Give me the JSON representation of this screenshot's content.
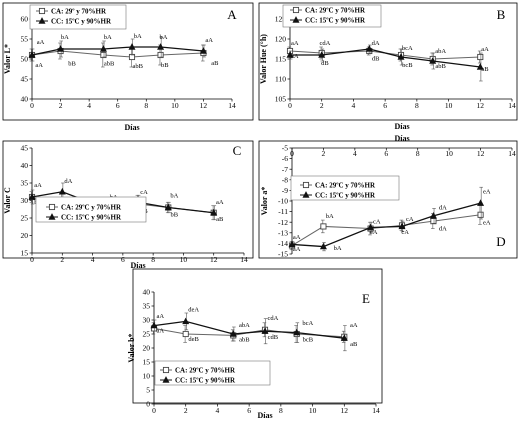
{
  "chart_data": [
    {
      "panel": "A",
      "type": "line",
      "xlabel": "Días",
      "ylabel": "Valor L*",
      "xlim": [
        0,
        14
      ],
      "xticks": [
        0,
        2,
        4,
        6,
        8,
        10,
        12,
        14
      ],
      "ylim": [
        40,
        60
      ],
      "yticks": [
        40,
        45,
        50,
        55,
        60
      ],
      "legend": [
        "CA: 29º y 70%HR",
        "CC: 15ºC y 90%HR"
      ],
      "series": [
        {
          "name": "CA: 29º y 70%HR",
          "marker": "square",
          "x": [
            0,
            2,
            5,
            7,
            9,
            12
          ],
          "y": [
            51,
            52,
            51,
            50.5,
            51,
            51.5
          ],
          "err": [
            1.5,
            2,
            3,
            2.5,
            2.5,
            2
          ]
        },
        {
          "name": "CC: 15ºC y 90%HR",
          "marker": "triangle",
          "x": [
            0,
            2,
            5,
            7,
            9,
            12
          ],
          "y": [
            51,
            52.5,
            52.5,
            53,
            53,
            52
          ],
          "err": [
            1.5,
            2,
            2,
            2,
            2.5,
            1.5
          ]
        }
      ],
      "labels": [
        {
          "x": 0.6,
          "y": 53.8,
          "t": "aA"
        },
        {
          "x": 0.5,
          "y": 48,
          "t": "aA"
        },
        {
          "x": 2.3,
          "y": 55,
          "t": "bA"
        },
        {
          "x": 2.8,
          "y": 48.4,
          "t": "bB"
        },
        {
          "x": 5.3,
          "y": 55,
          "t": "bA"
        },
        {
          "x": 5.4,
          "y": 48.4,
          "t": "abB"
        },
        {
          "x": 7.4,
          "y": 55.3,
          "t": "bA"
        },
        {
          "x": 7.4,
          "y": 47.8,
          "t": "abB"
        },
        {
          "x": 9.2,
          "y": 55,
          "t": "bA"
        },
        {
          "x": 9.3,
          "y": 48,
          "t": "bB"
        },
        {
          "x": 12.4,
          "y": 54.3,
          "t": "aA"
        },
        {
          "x": 12.8,
          "y": 48.5,
          "t": "aB"
        }
      ]
    },
    {
      "panel": "B",
      "type": "line",
      "xlabel": "Días",
      "ylabel": "Valor Hue (°h)",
      "xlim": [
        0,
        14
      ],
      "xticks": [
        0,
        2,
        4,
        6,
        8,
        10,
        12,
        14
      ],
      "ylim": [
        105,
        125
      ],
      "yticks": [
        105,
        110,
        115,
        120,
        125
      ],
      "legend": [
        "CA: 29ºC y 70%HR",
        "CC: 15ºC y 90%HR"
      ],
      "series": [
        {
          "name": "CA: 29ºC y 70%HR",
          "marker": "square",
          "x": [
            0,
            2,
            5,
            7,
            9,
            12
          ],
          "y": [
            117,
            116.5,
            117,
            116,
            115,
            115.5
          ],
          "err": [
            1,
            1.5,
            1,
            1.5,
            1.5,
            1.5
          ]
        },
        {
          "name": "CC: 15ºC y 90%HR",
          "marker": "triangle",
          "x": [
            0,
            2,
            5,
            7,
            9,
            12
          ],
          "y": [
            116,
            116,
            117.5,
            115.5,
            114.5,
            113
          ],
          "err": [
            1,
            1.5,
            1,
            2,
            2,
            3.5
          ]
        }
      ],
      "labels": [
        {
          "x": 0.3,
          "y": 118.5,
          "t": "aA"
        },
        {
          "x": 0.3,
          "y": 115.2,
          "t": "aA"
        },
        {
          "x": 2.2,
          "y": 118.5,
          "t": "cdA"
        },
        {
          "x": 2.2,
          "y": 113.5,
          "t": "dB"
        },
        {
          "x": 5.4,
          "y": 118.5,
          "t": "dA"
        },
        {
          "x": 5.4,
          "y": 114.6,
          "t": "dB"
        },
        {
          "x": 7.4,
          "y": 117.2,
          "t": "bcA"
        },
        {
          "x": 7.4,
          "y": 113,
          "t": "bcB"
        },
        {
          "x": 9.5,
          "y": 116.5,
          "t": "abA"
        },
        {
          "x": 9.5,
          "y": 112.7,
          "t": "abB"
        },
        {
          "x": 12.3,
          "y": 117,
          "t": "aA"
        },
        {
          "x": 12.3,
          "y": 112,
          "t": "aB"
        }
      ]
    },
    {
      "panel": "C",
      "type": "line",
      "xlabel": "Días",
      "ylabel": "Valor C",
      "xlim": [
        0,
        14
      ],
      "xticks": [
        0,
        2,
        4,
        6,
        8,
        10,
        12,
        14
      ],
      "ylim": [
        15,
        45
      ],
      "yticks": [
        15,
        20,
        25,
        30,
        35,
        40,
        45
      ],
      "legend": [
        "CA: 29ºC y 70%HR",
        "CC: 15ºC y 90%HR"
      ],
      "series": [
        {
          "name": "CA: 29ºC y 70%HR",
          "marker": "square",
          "x": [
            0,
            2,
            5,
            7,
            9,
            12
          ],
          "y": [
            31,
            28,
            27.5,
            29,
            28,
            26.5
          ],
          "err": [
            1.5,
            4,
            1.5,
            2.5,
            1.5,
            2
          ]
        },
        {
          "name": "CC: 15ºC y 90%HR",
          "marker": "triangle",
          "x": [
            0,
            2,
            5,
            7,
            9,
            12
          ],
          "y": [
            31,
            32.5,
            27.5,
            29.5,
            28,
            26.5
          ],
          "err": [
            2,
            2.5,
            2,
            2,
            1.5,
            2
          ]
        }
      ],
      "labels": [
        {
          "x": 0.4,
          "y": 33.8,
          "t": "aA"
        },
        {
          "x": 0.4,
          "y": 29,
          "t": "bB"
        },
        {
          "x": 2.4,
          "y": 35,
          "t": "dA"
        },
        {
          "x": 2.4,
          "y": 24.5,
          "t": "dB"
        },
        {
          "x": 5.4,
          "y": 30.5,
          "t": "bA"
        },
        {
          "x": 5.4,
          "y": 25,
          "t": "bB"
        },
        {
          "x": 7.4,
          "y": 31.8,
          "t": "cA"
        },
        {
          "x": 7.4,
          "y": 26.5,
          "t": "cB"
        },
        {
          "x": 9.4,
          "y": 30.8,
          "t": "bA"
        },
        {
          "x": 9.4,
          "y": 25.5,
          "t": "bB"
        },
        {
          "x": 12.4,
          "y": 29,
          "t": "aA"
        },
        {
          "x": 12.4,
          "y": 24.2,
          "t": "aB"
        }
      ]
    },
    {
      "panel": "D",
      "type": "line",
      "xlabel": "Días",
      "ylabel": "Valor a*",
      "xlim": [
        0,
        14
      ],
      "xticks": [
        0,
        2,
        4,
        6,
        8,
        10,
        12,
        14
      ],
      "ylim": [
        -15,
        -5
      ],
      "yticks": [
        -15,
        -14,
        -13,
        -12,
        -11,
        -10,
        -9,
        -8,
        -7,
        -6,
        -5
      ],
      "legend": [
        "CA: 29ºC y 70%HR",
        "CC: 15ºC y 90%HR"
      ],
      "series": [
        {
          "name": "CA: 29ºC y 70%HR",
          "marker": "square",
          "x": [
            0,
            2,
            5,
            7,
            9,
            12
          ],
          "y": [
            -14.2,
            -12.4,
            -12.6,
            -12.3,
            -11.9,
            -11.3
          ],
          "err": [
            0.4,
            0.6,
            0.6,
            0.5,
            0.7,
            0.9
          ]
        },
        {
          "name": "CC: 15ºC y 90%HR",
          "marker": "triangle",
          "x": [
            0,
            2,
            5,
            7,
            9,
            12
          ],
          "y": [
            -14.1,
            -14.3,
            -12.5,
            -12.4,
            -11.4,
            -10.2
          ],
          "err": [
            0.3,
            0.4,
            0.5,
            0.5,
            0.7,
            1.5
          ]
        }
      ],
      "labels": [
        {
          "x": 0.3,
          "y": -13.6,
          "t": "aA"
        },
        {
          "x": 0.3,
          "y": -14.7,
          "t": "aA"
        },
        {
          "x": 2.4,
          "y": -11.6,
          "t": "bA"
        },
        {
          "x": 2.9,
          "y": -14.6,
          "t": "bA"
        },
        {
          "x": 5.4,
          "y": -12.1,
          "t": "cA"
        },
        {
          "x": 5.2,
          "y": -13.1,
          "t": "cA"
        },
        {
          "x": 7.5,
          "y": -11.9,
          "t": "cA"
        },
        {
          "x": 7.2,
          "y": -13.1,
          "t": "cA"
        },
        {
          "x": 9.6,
          "y": -10.8,
          "t": "dA"
        },
        {
          "x": 9.6,
          "y": -12.8,
          "t": "dA"
        },
        {
          "x": 12.4,
          "y": -9.3,
          "t": "eA"
        },
        {
          "x": 12.4,
          "y": -12.2,
          "t": "eA"
        }
      ]
    },
    {
      "panel": "E",
      "type": "line",
      "xlabel": "Días",
      "ylabel": "Valor b*",
      "xlim": [
        0,
        14
      ],
      "xticks": [
        0,
        2,
        4,
        6,
        8,
        10,
        12,
        14
      ],
      "ylim": [
        0,
        40
      ],
      "yticks": [
        0,
        5,
        10,
        15,
        20,
        25,
        30,
        35,
        40
      ],
      "legend": [
        "CA: 29ºC y 70%HR",
        "CC: 15ºC y 90%HR"
      ],
      "series": [
        {
          "name": "CA: 29ºC y 70%HR",
          "marker": "square",
          "x": [
            0,
            2,
            5,
            7,
            9,
            12
          ],
          "y": [
            27,
            25,
            24.5,
            26.5,
            25,
            24
          ],
          "err": [
            2,
            3,
            2,
            2.5,
            3,
            2
          ]
        },
        {
          "name": "CC: 15ºC y 90%HR",
          "marker": "triangle",
          "x": [
            0,
            2,
            5,
            7,
            9,
            12
          ],
          "y": [
            28,
            29.5,
            25,
            26,
            25.5,
            23.5
          ],
          "err": [
            2,
            3,
            2.5,
            4.5,
            3.5,
            4.5
          ]
        }
      ],
      "labels": [
        {
          "x": 0.4,
          "y": 30.8,
          "t": "aA"
        },
        {
          "x": 0.4,
          "y": 25.5,
          "t": "aA"
        },
        {
          "x": 2.5,
          "y": 33,
          "t": "deA"
        },
        {
          "x": 2.5,
          "y": 22.5,
          "t": "deB"
        },
        {
          "x": 5.7,
          "y": 27.5,
          "t": "abA"
        },
        {
          "x": 5.7,
          "y": 22.3,
          "t": "abB"
        },
        {
          "x": 7.5,
          "y": 30,
          "t": "cdA"
        },
        {
          "x": 7.5,
          "y": 23.3,
          "t": "cdB"
        },
        {
          "x": 9.7,
          "y": 28.3,
          "t": "bcA"
        },
        {
          "x": 9.7,
          "y": 22.3,
          "t": "bcB"
        },
        {
          "x": 12.6,
          "y": 27.5,
          "t": "aA"
        },
        {
          "x": 12.6,
          "y": 20.8,
          "t": "aB"
        }
      ]
    }
  ]
}
